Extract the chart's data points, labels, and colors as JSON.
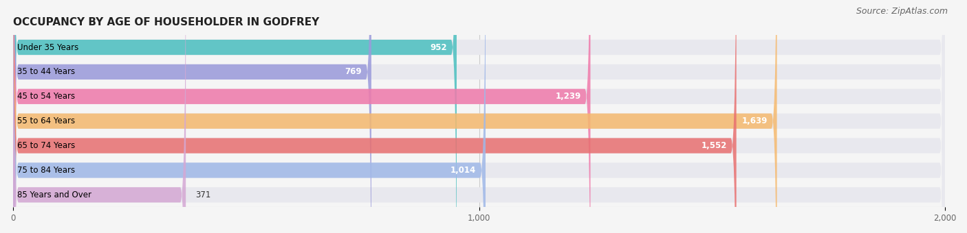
{
  "title": "OCCUPANCY BY AGE OF HOUSEHOLDER IN GODFREY",
  "source": "Source: ZipAtlas.com",
  "categories": [
    "Under 35 Years",
    "35 to 44 Years",
    "45 to 54 Years",
    "55 to 64 Years",
    "65 to 74 Years",
    "75 to 84 Years",
    "85 Years and Over"
  ],
  "values": [
    952,
    769,
    1239,
    1639,
    1552,
    1014,
    371
  ],
  "bar_colors": [
    "#4bbfbf",
    "#9b9bdb",
    "#f07aaa",
    "#f5b96e",
    "#e87070",
    "#a0b8e8",
    "#d4a8d4"
  ],
  "bar_bg_color": "#e8e8ee",
  "xlim": [
    0,
    2000
  ],
  "xticks": [
    0,
    1000,
    2000
  ],
  "xticklabels": [
    "0",
    "1,000",
    "2,000"
  ],
  "title_fontsize": 11,
  "source_fontsize": 9,
  "label_fontsize": 8.5,
  "value_fontsize": 8.5,
  "bg_color": "#f5f5f5",
  "bar_height": 0.62,
  "bar_gap": 0.12
}
